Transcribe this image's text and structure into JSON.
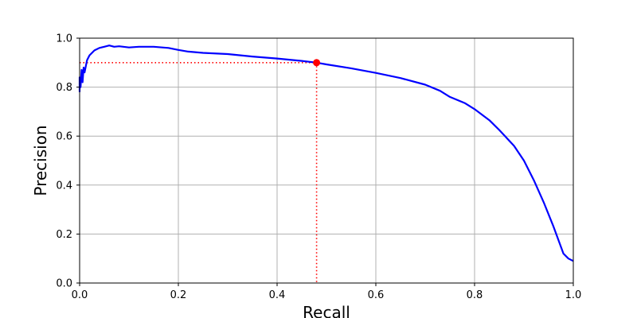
{
  "chart_data": {
    "type": "line",
    "xlabel": "Recall",
    "ylabel": "Precision",
    "xlim": [
      0.0,
      1.0
    ],
    "ylim": [
      0.0,
      1.0
    ],
    "grid": true,
    "xticks": [
      "0.0",
      "0.2",
      "0.4",
      "0.6",
      "0.8",
      "1.0"
    ],
    "yticks": [
      "0.0",
      "0.2",
      "0.4",
      "0.6",
      "0.8",
      "1.0"
    ],
    "series": [
      {
        "color": "#0000ff",
        "x": [
          0.0,
          0.0,
          0.002,
          0.004,
          0.006,
          0.008,
          0.01,
          0.015,
          0.02,
          0.03,
          0.04,
          0.05,
          0.06,
          0.07,
          0.08,
          0.1,
          0.12,
          0.15,
          0.18,
          0.2,
          0.22,
          0.25,
          0.3,
          0.35,
          0.4,
          0.45,
          0.48,
          0.5,
          0.55,
          0.6,
          0.65,
          0.7,
          0.73,
          0.75,
          0.78,
          0.8,
          0.83,
          0.85,
          0.88,
          0.9,
          0.92,
          0.94,
          0.96,
          0.98,
          0.99,
          1.0
        ],
        "y": [
          0.78,
          0.84,
          0.8,
          0.87,
          0.82,
          0.88,
          0.86,
          0.91,
          0.93,
          0.95,
          0.96,
          0.965,
          0.97,
          0.965,
          0.967,
          0.962,
          0.965,
          0.965,
          0.96,
          0.952,
          0.945,
          0.94,
          0.935,
          0.925,
          0.917,
          0.907,
          0.9,
          0.893,
          0.877,
          0.858,
          0.837,
          0.81,
          0.785,
          0.76,
          0.735,
          0.71,
          0.665,
          0.625,
          0.56,
          0.5,
          0.42,
          0.33,
          0.23,
          0.12,
          0.1,
          0.09
        ]
      }
    ],
    "annotation": {
      "color": "#ff0000",
      "x": 0.48,
      "y": 0.9,
      "line_style": "dotted"
    }
  }
}
